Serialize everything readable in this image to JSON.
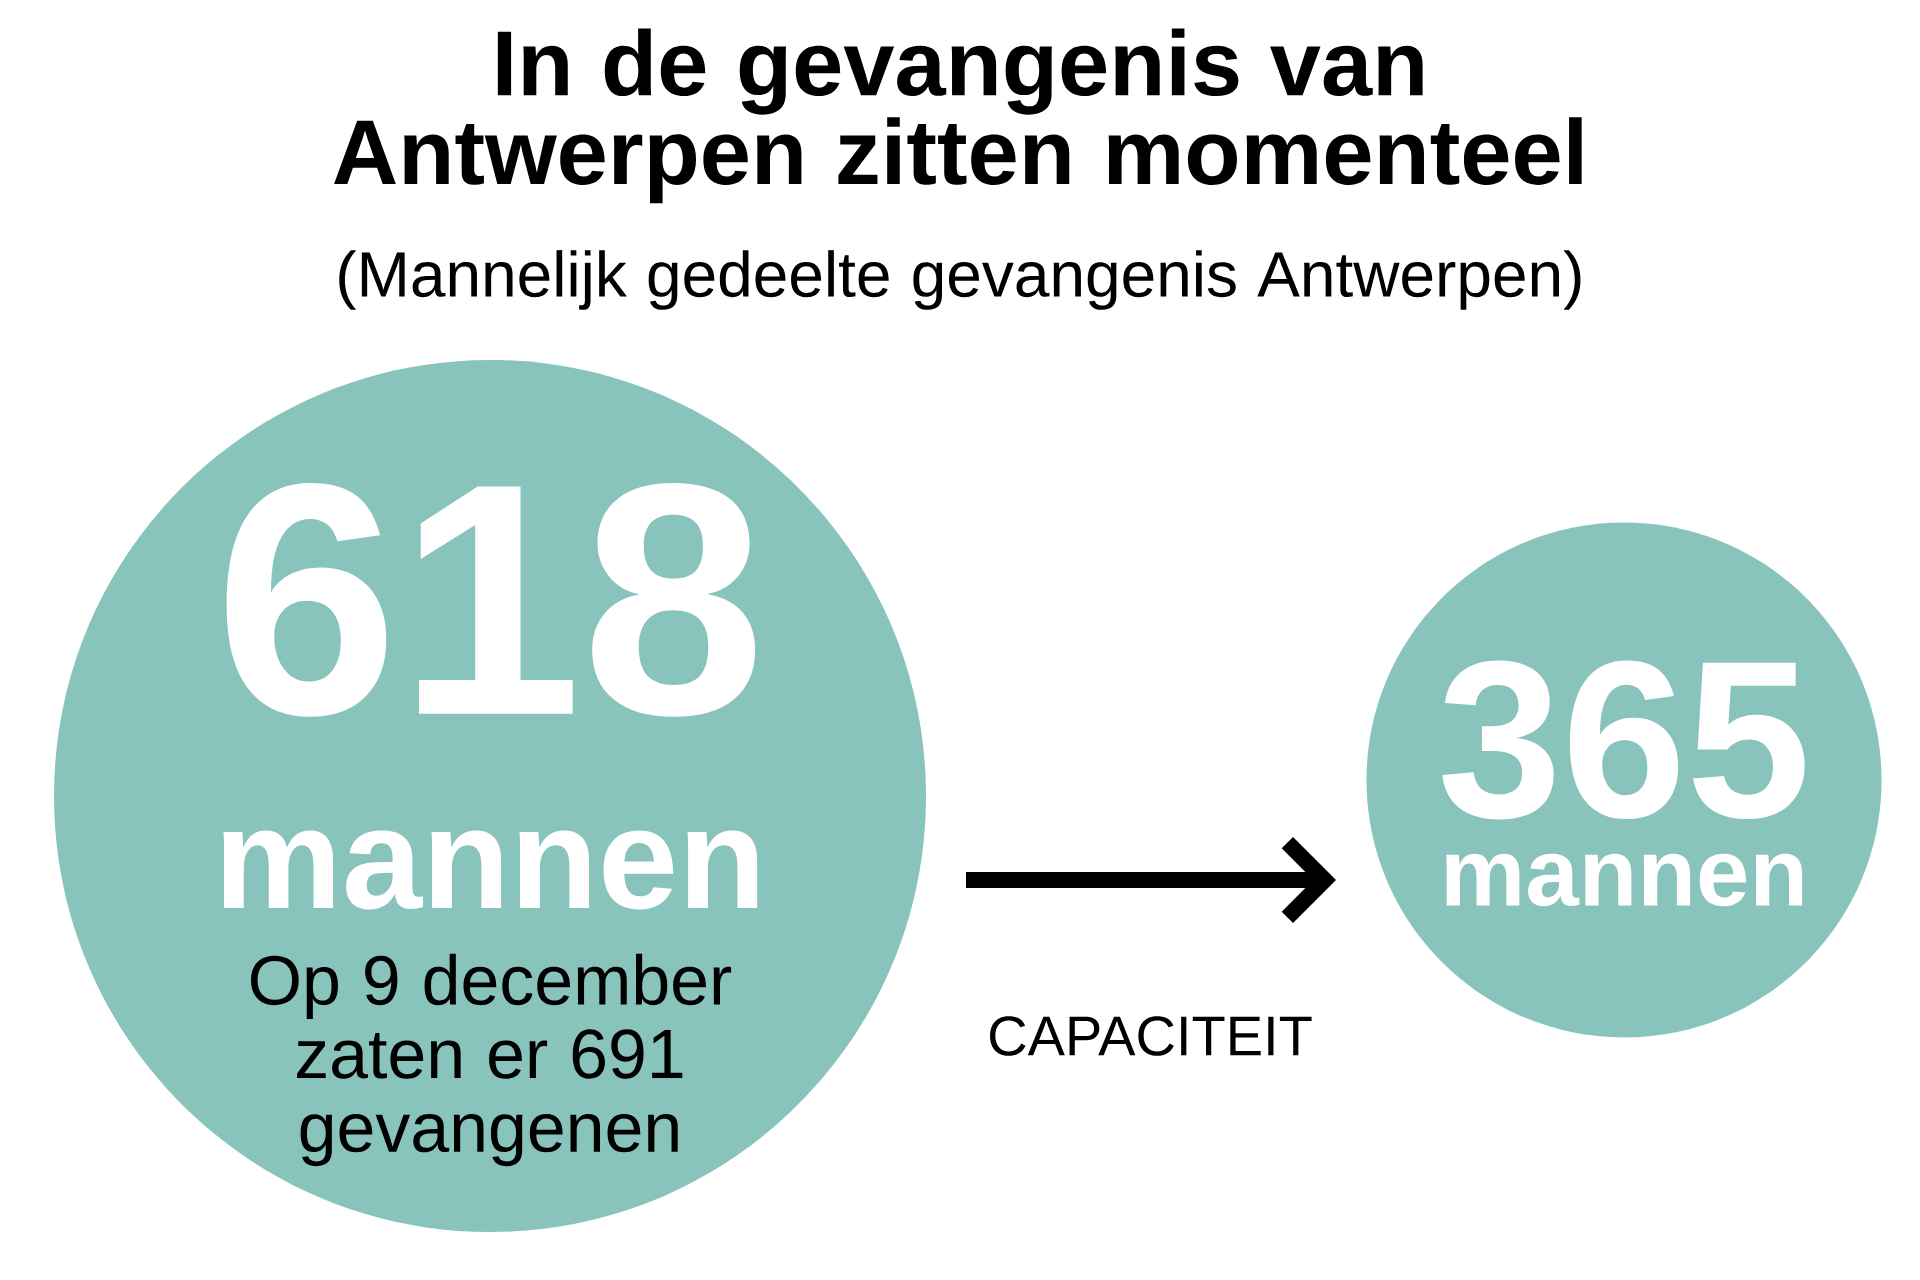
{
  "chart_data": {
    "type": "other",
    "title": "In de gevangenis van Antwerpen zitten momenteel",
    "subtitle": "(Mannelijk gedeelte gevangenis Antwerpen)",
    "values": [
      618,
      365
    ],
    "data_labels": true,
    "color": "#88c4bc",
    "annotations": [
      "mannen",
      "mannen",
      "Op 9 december zaten er 691 gevangenen",
      "CAPACITEIT"
    ]
  }
}
